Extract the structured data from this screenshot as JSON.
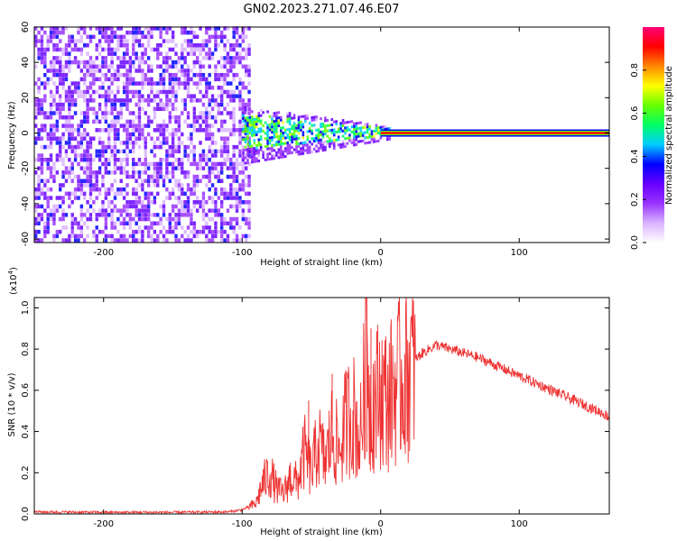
{
  "page_title": "GN02.2023.271.07.46.E07",
  "chart_data": [
    {
      "type": "heatmap",
      "title": "GN02.2023.271.07.46.E07",
      "xlabel": "Height of straight line (km)",
      "ylabel": "Frequency (Hz)",
      "xlim": [
        -250,
        165
      ],
      "ylim": [
        -62,
        60
      ],
      "x_ticks": [
        -200,
        -100,
        0,
        100
      ],
      "y_ticks": [
        -60,
        -40,
        -20,
        0,
        20,
        40,
        60
      ],
      "colorbar": {
        "label": "Normalized spectral amplitude",
        "range": [
          0,
          1
        ],
        "ticks": [
          0.0,
          0.2,
          0.4,
          0.6,
          0.8
        ],
        "colors": [
          "#ffffff",
          "#d9b3ff",
          "#9933ff",
          "#6600ff",
          "#0000ff",
          "#00ccff",
          "#00ff66",
          "#66ff00",
          "#ffff00",
          "#ff8800",
          "#ff0000",
          "#ff0077"
        ]
      },
      "regions": [
        {
          "name": "noise",
          "x_range": [
            -250,
            -95
          ],
          "f_range": [
            -62,
            60
          ],
          "amplitude": 0.15
        },
        {
          "name": "transition",
          "x_range": [
            -100,
            10
          ],
          "f_center": 0,
          "f_halfwidth_start": 10,
          "f_halfwidth_end": 2,
          "amplitude": 0.4
        },
        {
          "name": "carrier",
          "x_range": [
            0,
            165
          ],
          "f_center": 0,
          "amplitude": 0.95
        }
      ],
      "grid": false
    },
    {
      "type": "line",
      "xlabel": "Height of straight line (km)",
      "ylabel": "SNR (10 * v/v)",
      "y_scale_label": "(x10",
      "y_scale_exp": "4",
      "y_scale_close": ")",
      "xlim": [
        -250,
        165
      ],
      "ylim": [
        0,
        1.05
      ],
      "x_ticks": [
        -200,
        -100,
        0,
        100
      ],
      "y_ticks": [
        0.0,
        0.2,
        0.4,
        0.6,
        0.8,
        1.0
      ],
      "y_tick_labels": [
        "0.0",
        "0.2",
        "0.4",
        "0.6",
        "0.8",
        "1.0"
      ],
      "color": "#ee3333",
      "series": [
        {
          "x": [
            -250,
            -200,
            -150,
            -110,
            -100,
            -90,
            -85,
            -80,
            -75,
            -70,
            -65,
            -60,
            -55,
            -50,
            -45,
            -40,
            -35,
            -30,
            -25,
            -20,
            -15,
            -12,
            -10,
            -8,
            -5,
            0,
            5,
            10,
            15,
            20,
            25,
            30,
            35,
            40,
            50,
            60,
            70,
            80,
            90,
            100,
            110,
            120,
            130,
            140,
            150,
            160,
            165
          ],
          "y": [
            0.01,
            0.008,
            0.008,
            0.01,
            0.02,
            0.05,
            0.15,
            0.2,
            0.12,
            0.1,
            0.18,
            0.15,
            0.3,
            0.2,
            0.35,
            0.25,
            0.4,
            0.3,
            0.45,
            0.5,
            0.35,
            0.6,
            1.05,
            0.5,
            0.55,
            0.6,
            0.55,
            0.62,
            0.65,
            0.7,
            0.75,
            0.78,
            0.8,
            0.82,
            0.8,
            0.78,
            0.76,
            0.73,
            0.7,
            0.67,
            0.64,
            0.61,
            0.58,
            0.55,
            0.52,
            0.49,
            0.47
          ]
        }
      ],
      "grid": false
    }
  ]
}
